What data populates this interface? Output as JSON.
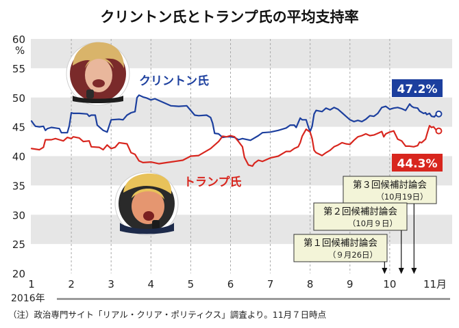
{
  "title": "クリントン氏とトランプ氏の平均支持率",
  "footnote": "（注）政治専門サイト「リアル・クリア・ポリティクス」調査より。11月７日時点",
  "year_label": "2016年",
  "colors": {
    "clinton": "#1c3f9e",
    "trump": "#d8261e",
    "band": "#e6e6e6",
    "debate_box": "#f3f4d8",
    "axis_text": "#222222"
  },
  "chart_data": {
    "type": "line",
    "title": "クリントン氏とトランプ氏の平均支持率",
    "ylabel": "%",
    "ylim": [
      20,
      60
    ],
    "yticks": [
      20,
      25,
      30,
      35,
      40,
      45,
      50,
      55,
      60
    ],
    "x_unit": "month (2016)",
    "xlim": [
      1,
      11.25
    ],
    "xticks": [
      "1",
      "2",
      "3",
      "4",
      "5",
      "6",
      "7",
      "8",
      "9",
      "10",
      "11月"
    ],
    "grid": "alternating horizontal bands",
    "series": [
      {
        "name": "クリントン氏",
        "color": "#1c3f9e",
        "final_label": "47.2%",
        "points": [
          [
            1.0,
            46.0
          ],
          [
            1.05,
            45.5
          ],
          [
            1.1,
            45.1
          ],
          [
            1.2,
            45.0
          ],
          [
            1.3,
            45.1
          ],
          [
            1.35,
            44.4
          ],
          [
            1.4,
            44.7
          ],
          [
            1.5,
            44.9
          ],
          [
            1.6,
            44.8
          ],
          [
            1.7,
            44.7
          ],
          [
            1.75,
            44.0
          ],
          [
            1.9,
            44.0
          ],
          [
            1.95,
            45.2
          ],
          [
            2.0,
            47.4
          ],
          [
            2.05,
            47.3
          ],
          [
            2.2,
            47.3
          ],
          [
            2.4,
            47.2
          ],
          [
            2.45,
            46.8
          ],
          [
            2.5,
            47.0
          ],
          [
            2.6,
            47.0
          ],
          [
            2.65,
            45.3
          ],
          [
            2.8,
            44.4
          ],
          [
            2.9,
            44.1
          ],
          [
            3.0,
            46.2
          ],
          [
            3.2,
            46.3
          ],
          [
            3.3,
            46.2
          ],
          [
            3.4,
            47.0
          ],
          [
            3.5,
            47.4
          ],
          [
            3.6,
            47.6
          ],
          [
            3.65,
            50.0
          ],
          [
            3.7,
            50.4
          ],
          [
            3.8,
            50.1
          ],
          [
            3.9,
            49.9
          ],
          [
            4.0,
            49.6
          ],
          [
            4.1,
            49.8
          ],
          [
            4.3,
            49.2
          ],
          [
            4.5,
            48.6
          ],
          [
            4.7,
            48.5
          ],
          [
            4.9,
            48.6
          ],
          [
            5.0,
            47.8
          ],
          [
            5.1,
            47.0
          ],
          [
            5.2,
            46.9
          ],
          [
            5.4,
            47.0
          ],
          [
            5.5,
            46.6
          ],
          [
            5.55,
            45.6
          ],
          [
            5.6,
            43.9
          ],
          [
            5.7,
            43.8
          ],
          [
            5.8,
            43.2
          ],
          [
            5.9,
            43.3
          ],
          [
            6.0,
            43.3
          ],
          [
            6.1,
            43.2
          ],
          [
            6.2,
            42.8
          ],
          [
            6.3,
            43.0
          ],
          [
            6.5,
            42.7
          ],
          [
            6.7,
            43.5
          ],
          [
            6.8,
            44.0
          ],
          [
            7.0,
            44.1
          ],
          [
            7.2,
            44.4
          ],
          [
            7.4,
            44.8
          ],
          [
            7.5,
            45.3
          ],
          [
            7.6,
            45.3
          ],
          [
            7.65,
            44.9
          ],
          [
            7.7,
            45.7
          ],
          [
            7.75,
            46.5
          ],
          [
            7.8,
            46.2
          ],
          [
            7.9,
            46.2
          ],
          [
            7.95,
            45.1
          ],
          [
            8.0,
            44.2
          ],
          [
            8.05,
            45.1
          ],
          [
            8.1,
            47.2
          ],
          [
            8.15,
            47.8
          ],
          [
            8.3,
            47.6
          ],
          [
            8.4,
            48.2
          ],
          [
            8.5,
            47.9
          ],
          [
            8.6,
            48.3
          ],
          [
            8.7,
            48.0
          ],
          [
            8.8,
            47.4
          ],
          [
            8.9,
            46.8
          ],
          [
            9.0,
            46.2
          ],
          [
            9.1,
            45.9
          ],
          [
            9.2,
            46.1
          ],
          [
            9.3,
            45.9
          ],
          [
            9.4,
            46.3
          ],
          [
            9.5,
            46.9
          ],
          [
            9.6,
            46.8
          ],
          [
            9.7,
            47.3
          ],
          [
            9.8,
            48.3
          ],
          [
            9.9,
            48.5
          ],
          [
            10.0,
            48.0
          ],
          [
            10.1,
            48.2
          ],
          [
            10.2,
            48.3
          ],
          [
            10.3,
            48.1
          ],
          [
            10.4,
            47.8
          ],
          [
            10.5,
            48.9
          ],
          [
            10.55,
            48.5
          ],
          [
            10.6,
            48.3
          ],
          [
            10.7,
            48.2
          ],
          [
            10.75,
            47.7
          ],
          [
            10.85,
            47.3
          ],
          [
            10.9,
            47.4
          ],
          [
            10.93,
            47.1
          ],
          [
            11.0,
            47.3
          ],
          [
            11.05,
            46.8
          ],
          [
            11.12,
            46.7
          ],
          [
            11.18,
            47.2
          ]
        ]
      },
      {
        "name": "トランプ氏",
        "color": "#d8261e",
        "final_label": "44.3%",
        "points": [
          [
            1.0,
            41.3
          ],
          [
            1.2,
            41.1
          ],
          [
            1.3,
            41.5
          ],
          [
            1.35,
            42.8
          ],
          [
            1.5,
            42.8
          ],
          [
            1.6,
            43.0
          ],
          [
            1.7,
            42.8
          ],
          [
            1.8,
            42.6
          ],
          [
            1.9,
            43.2
          ],
          [
            2.0,
            43.0
          ],
          [
            2.05,
            43.3
          ],
          [
            2.2,
            43.1
          ],
          [
            2.3,
            42.5
          ],
          [
            2.45,
            42.6
          ],
          [
            2.5,
            41.6
          ],
          [
            2.7,
            41.5
          ],
          [
            2.8,
            41.1
          ],
          [
            2.9,
            41.9
          ],
          [
            3.0,
            41.3
          ],
          [
            3.1,
            41.5
          ],
          [
            3.2,
            42.3
          ],
          [
            3.4,
            42.1
          ],
          [
            3.5,
            40.6
          ],
          [
            3.6,
            40.3
          ],
          [
            3.7,
            39.2
          ],
          [
            3.8,
            38.9
          ],
          [
            4.0,
            39.0
          ],
          [
            4.2,
            38.7
          ],
          [
            4.4,
            38.9
          ],
          [
            4.6,
            39.1
          ],
          [
            4.8,
            39.3
          ],
          [
            5.0,
            40.0
          ],
          [
            5.2,
            40.1
          ],
          [
            5.3,
            40.5
          ],
          [
            5.5,
            41.3
          ],
          [
            5.7,
            42.5
          ],
          [
            5.8,
            43.4
          ],
          [
            5.9,
            43.3
          ],
          [
            6.0,
            43.5
          ],
          [
            6.1,
            43.3
          ],
          [
            6.2,
            42.5
          ],
          [
            6.3,
            41.6
          ],
          [
            6.35,
            39.8
          ],
          [
            6.45,
            38.5
          ],
          [
            6.55,
            38.3
          ],
          [
            6.6,
            38.8
          ],
          [
            6.7,
            39.3
          ],
          [
            6.8,
            39.1
          ],
          [
            7.0,
            39.7
          ],
          [
            7.2,
            40.0
          ],
          [
            7.4,
            40.8
          ],
          [
            7.5,
            40.8
          ],
          [
            7.6,
            41.3
          ],
          [
            7.7,
            41.6
          ],
          [
            7.75,
            42.3
          ],
          [
            7.8,
            43.4
          ],
          [
            7.9,
            44.6
          ],
          [
            8.0,
            44.1
          ],
          [
            8.05,
            43.0
          ],
          [
            8.1,
            41.0
          ],
          [
            8.15,
            40.6
          ],
          [
            8.3,
            40.1
          ],
          [
            8.4,
            40.6
          ],
          [
            8.5,
            41.0
          ],
          [
            8.6,
            41.6
          ],
          [
            8.7,
            41.9
          ],
          [
            8.8,
            42.3
          ],
          [
            8.9,
            42.1
          ],
          [
            9.0,
            42.0
          ],
          [
            9.1,
            42.7
          ],
          [
            9.2,
            43.3
          ],
          [
            9.3,
            43.5
          ],
          [
            9.4,
            43.8
          ],
          [
            9.5,
            43.5
          ],
          [
            9.6,
            43.6
          ],
          [
            9.7,
            43.9
          ],
          [
            9.8,
            44.2
          ],
          [
            9.85,
            43.3
          ],
          [
            9.9,
            43.8
          ],
          [
            10.0,
            44.1
          ],
          [
            10.1,
            44.3
          ],
          [
            10.15,
            43.6
          ],
          [
            10.2,
            42.9
          ],
          [
            10.3,
            42.6
          ],
          [
            10.4,
            41.7
          ],
          [
            10.5,
            41.7
          ],
          [
            10.6,
            41.6
          ],
          [
            10.7,
            41.8
          ],
          [
            10.75,
            42.4
          ],
          [
            10.8,
            42.3
          ],
          [
            10.9,
            42.9
          ],
          [
            10.95,
            44.1
          ],
          [
            11.0,
            45.2
          ],
          [
            11.05,
            44.9
          ],
          [
            11.1,
            45.0
          ],
          [
            11.15,
            44.6
          ],
          [
            11.18,
            44.3
          ]
        ]
      }
    ],
    "annotations": [
      {
        "title": "第３回候補討論会",
        "date": "（10月19日）",
        "x": 10.61
      },
      {
        "title": "第２回候補討論会",
        "date": "（10月９日）",
        "x": 10.29
      },
      {
        "title": "第１回候補討論会",
        "date": "（９月26日）",
        "x": 9.87
      }
    ]
  },
  "portraits": [
    {
      "name": "clinton-portrait",
      "label": "クリントン氏"
    },
    {
      "name": "trump-portrait",
      "label": "トランプ氏"
    }
  ]
}
